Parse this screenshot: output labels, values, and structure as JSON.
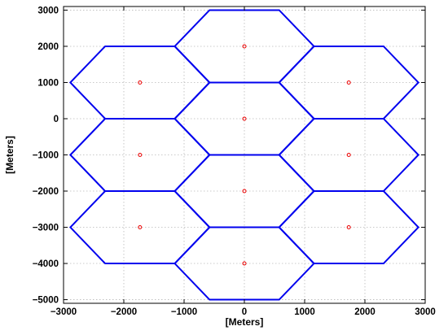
{
  "chart_data": {
    "type": "scatter",
    "title": "",
    "xlabel": "[Meters]",
    "ylabel": "[Meters]",
    "xlim": [
      -3000,
      3000
    ],
    "ylim": [
      -5100,
      3100
    ],
    "xticks": [
      -3000,
      -2000,
      -1000,
      0,
      1000,
      2000,
      3000
    ],
    "xtick_labels": [
      "−3000",
      "−2000",
      "−1000",
      "0",
      "1000",
      "2000",
      "3000"
    ],
    "yticks": [
      -5000,
      -4000,
      -3000,
      -2000,
      -1000,
      0,
      1000,
      2000,
      3000
    ],
    "ytick_labels": [
      "−5000",
      "−4000",
      "−3000",
      "−2000",
      "−1000",
      "0",
      "1000",
      "2000",
      "3000"
    ],
    "grid": true,
    "hexagon_radius": 1155,
    "cell_centers": [
      {
        "x": 0,
        "y": 2000
      },
      {
        "x": 0,
        "y": 0
      },
      {
        "x": 0,
        "y": -2000
      },
      {
        "x": 0,
        "y": -4000
      },
      {
        "x": -1732,
        "y": 1000
      },
      {
        "x": -1732,
        "y": -1000
      },
      {
        "x": -1732,
        "y": -3000
      },
      {
        "x": 1732,
        "y": 1000
      },
      {
        "x": 1732,
        "y": -1000
      },
      {
        "x": 1732,
        "y": -3000
      }
    ],
    "colors": {
      "hexagon_edge": "#0000ee",
      "site_marker": "#ee0000",
      "grid": "#b8b8b8"
    }
  }
}
